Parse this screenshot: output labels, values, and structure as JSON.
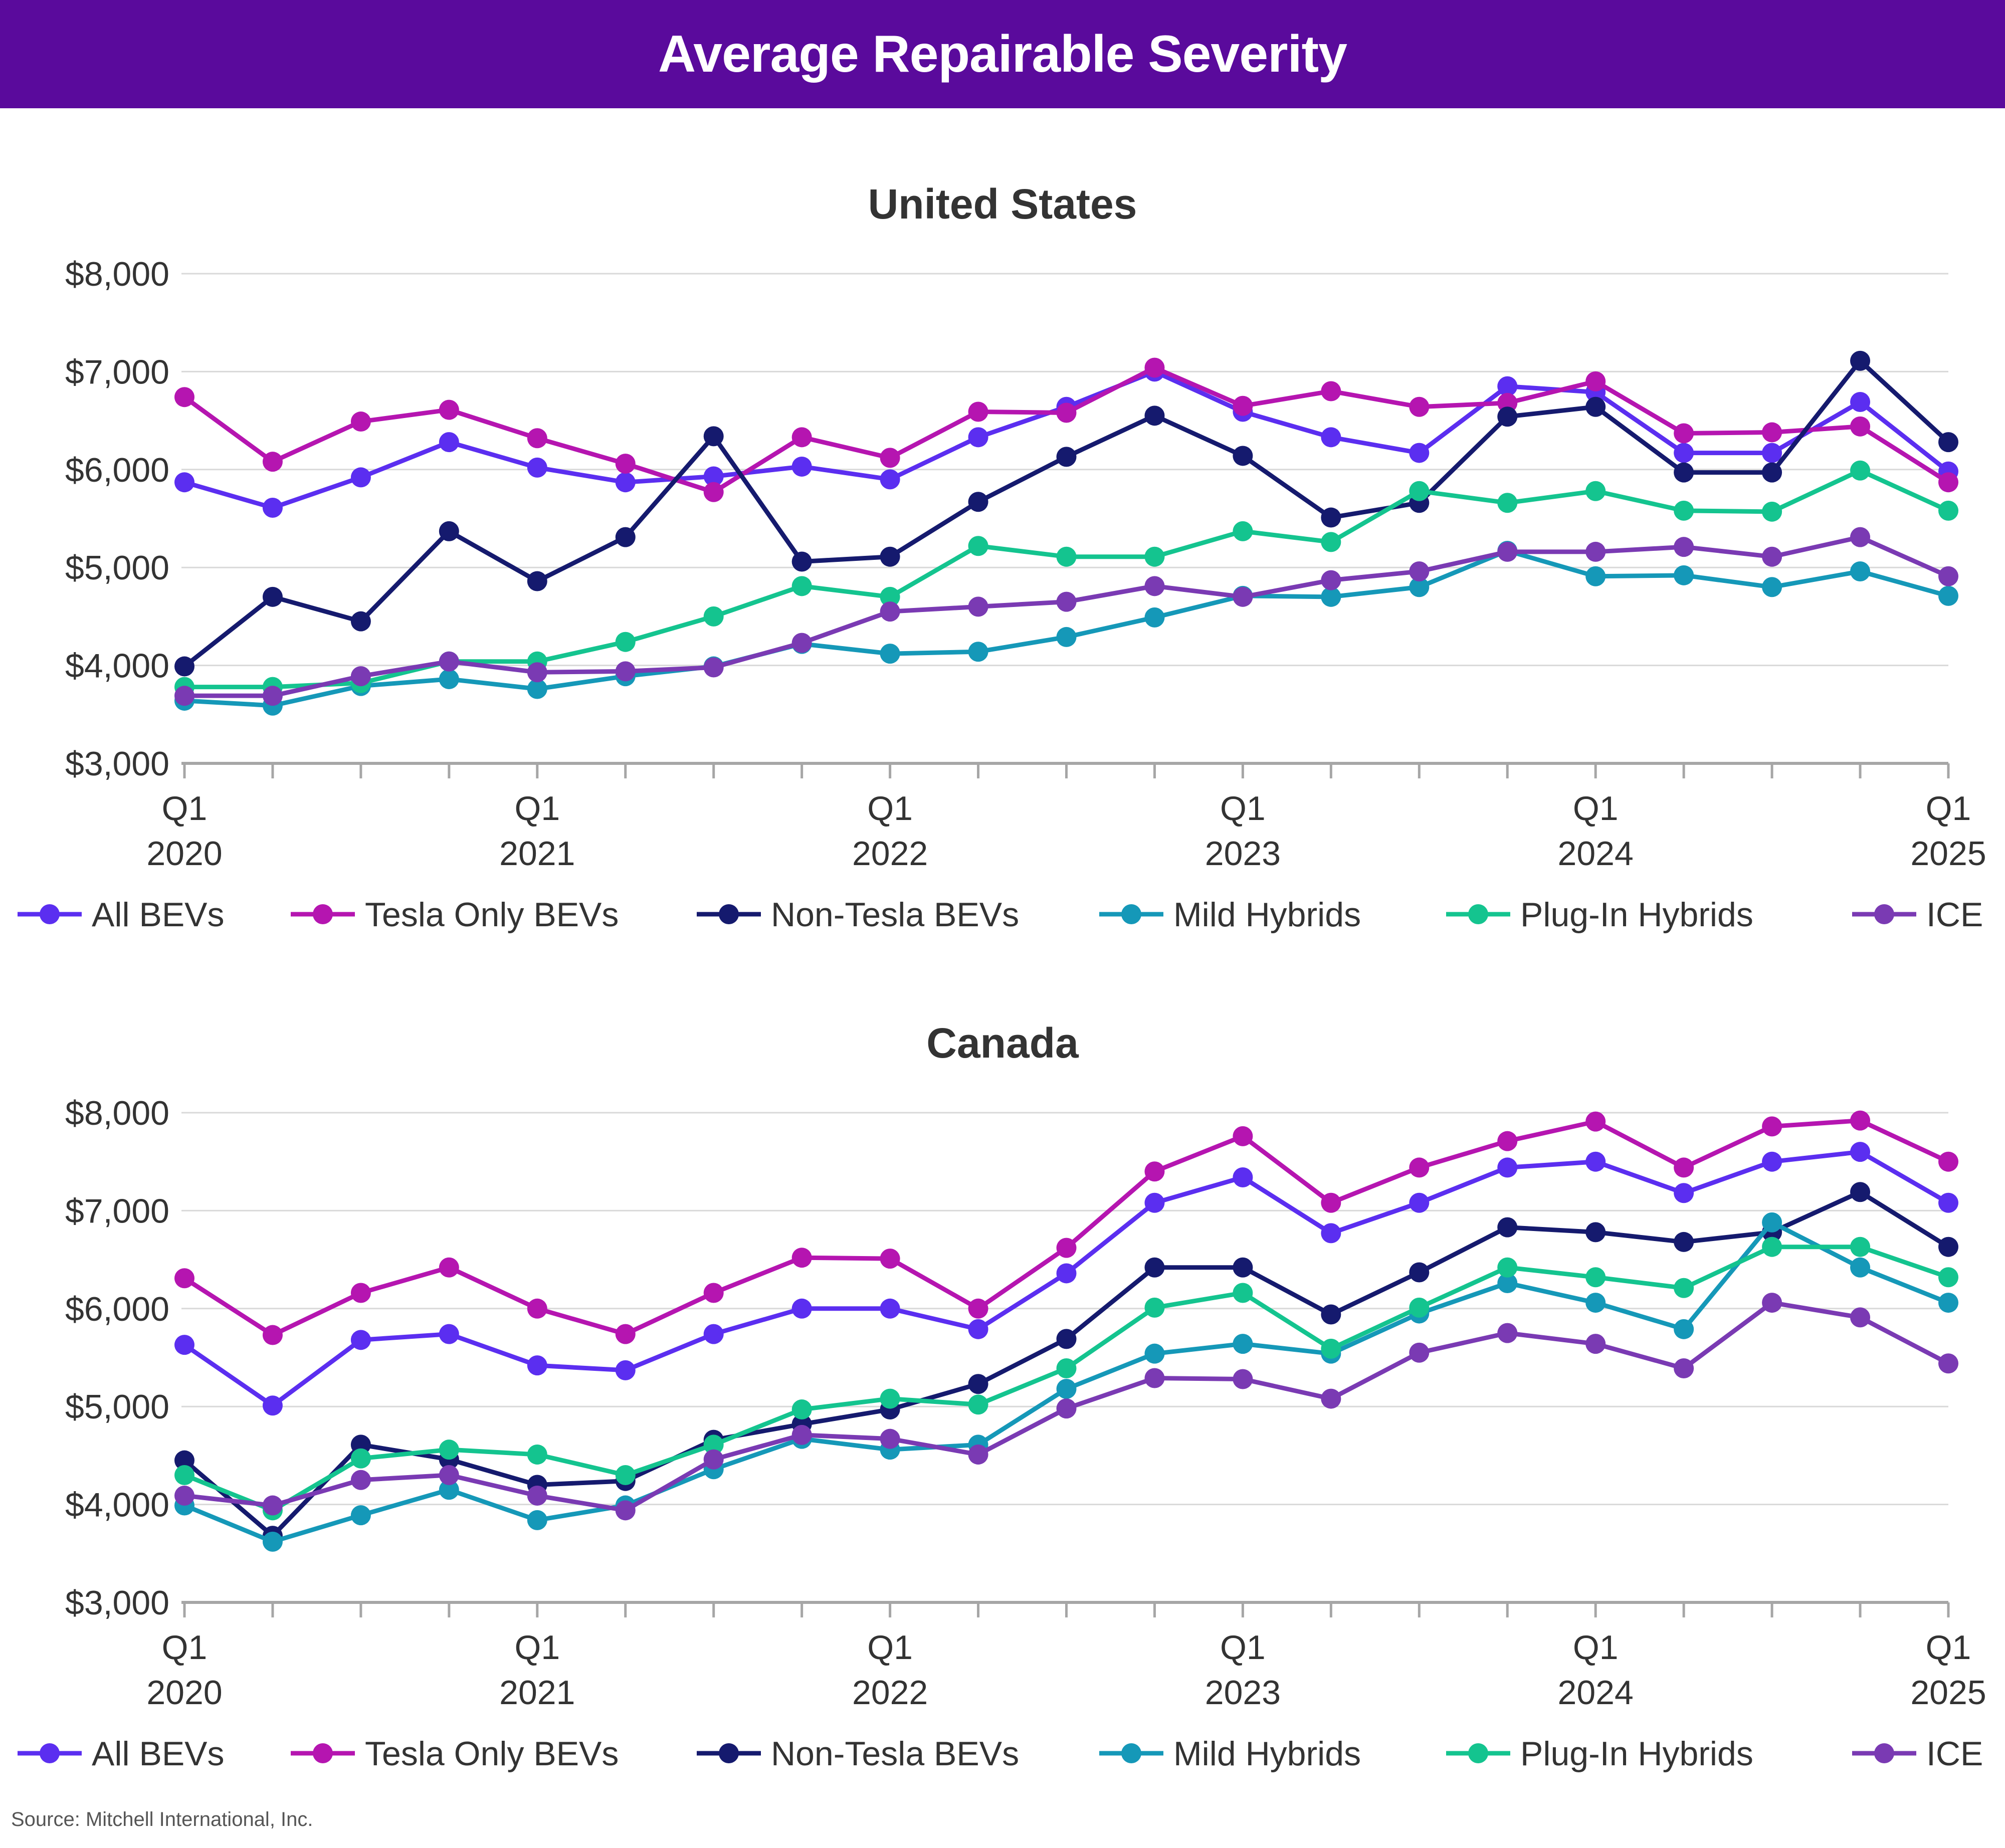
{
  "header": {
    "title": "Average Repairable Severity"
  },
  "source": "Source: Mitchell International, Inc.",
  "series_colors": {
    "All BEVs": "#5b2ef0",
    "Tesla Only BEVs": "#b515b0",
    "Non-Tesla BEVs": "#151a6e",
    "Mild Hybrids": "#1598b8",
    "Plug-In Hybrids": "#14c48f",
    "ICE": "#7a3ab3"
  },
  "chart_data": [
    {
      "type": "line",
      "title": "United States",
      "xlabel": "",
      "ylabel": "",
      "ylim": [
        3000,
        8000
      ],
      "yticks": [
        3000,
        4000,
        5000,
        6000,
        7000,
        8000
      ],
      "ytick_labels": [
        "$3,000",
        "$4,000",
        "$5,000",
        "$6,000",
        "$7,000",
        "$8,000"
      ],
      "x_labels": [
        {
          "index": 0,
          "q": "Q1",
          "year": "2020"
        },
        {
          "index": 4,
          "q": "Q1",
          "year": "2021"
        },
        {
          "index": 8,
          "q": "Q1",
          "year": "2022"
        },
        {
          "index": 12,
          "q": "Q1",
          "year": "2023"
        },
        {
          "index": 16,
          "q": "Q1",
          "year": "2024"
        },
        {
          "index": 20,
          "q": "Q1",
          "year": "2025"
        }
      ],
      "categories": [
        "Q1 2020",
        "Q2 2020",
        "Q3 2020",
        "Q4 2020",
        "Q1 2021",
        "Q2 2021",
        "Q3 2021",
        "Q4 2021",
        "Q1 2022",
        "Q2 2022",
        "Q3 2022",
        "Q4 2022",
        "Q1 2023",
        "Q2 2023",
        "Q3 2023",
        "Q4 2023",
        "Q1 2024",
        "Q2 2024",
        "Q3 2024",
        "Q4 2024",
        "Q1 2025"
      ],
      "legend": "bottom",
      "series": [
        {
          "name": "All BEVs",
          "values": [
            5870,
            5610,
            5920,
            6280,
            6020,
            5870,
            5930,
            6030,
            5900,
            6330,
            6640,
            7000,
            6590,
            6330,
            6170,
            6850,
            6790,
            6170,
            6170,
            6690,
            5980
          ]
        },
        {
          "name": "Tesla Only BEVs",
          "values": [
            6740,
            6080,
            6490,
            6610,
            6320,
            6060,
            5770,
            6330,
            6120,
            6590,
            6580,
            7040,
            6650,
            6800,
            6640,
            6680,
            6900,
            6370,
            6380,
            6440,
            5870
          ]
        },
        {
          "name": "Non-Tesla BEVs",
          "values": [
            3990,
            4700,
            4450,
            5370,
            4860,
            5310,
            6340,
            5060,
            5110,
            5670,
            6130,
            6550,
            6140,
            5510,
            5660,
            6540,
            6640,
            5970,
            5970,
            7110,
            6280
          ]
        },
        {
          "name": "Mild Hybrids",
          "values": [
            3640,
            3590,
            3790,
            3860,
            3760,
            3890,
            3990,
            4220,
            4120,
            4140,
            4290,
            4490,
            4710,
            4700,
            4800,
            5170,
            4910,
            4920,
            4800,
            4960,
            4710
          ]
        },
        {
          "name": "Plug-In Hybrids",
          "values": [
            3780,
            3780,
            3820,
            4040,
            4040,
            4240,
            4500,
            4810,
            4700,
            5220,
            5110,
            5110,
            5370,
            5260,
            5780,
            5660,
            5780,
            5580,
            5570,
            5990,
            5580
          ]
        },
        {
          "name": "ICE",
          "values": [
            3690,
            3690,
            3890,
            4040,
            3930,
            3940,
            3980,
            4230,
            4550,
            4600,
            4650,
            4810,
            4700,
            4870,
            4960,
            5160,
            5160,
            5210,
            5110,
            5310,
            4910
          ]
        }
      ]
    },
    {
      "type": "line",
      "title": "Canada",
      "xlabel": "",
      "ylabel": "",
      "ylim": [
        3000,
        8000
      ],
      "yticks": [
        3000,
        4000,
        5000,
        6000,
        7000,
        8000
      ],
      "ytick_labels": [
        "$3,000",
        "$4,000",
        "$5,000",
        "$6,000",
        "$7,000",
        "$8,000"
      ],
      "x_labels": [
        {
          "index": 0,
          "q": "Q1",
          "year": "2020"
        },
        {
          "index": 4,
          "q": "Q1",
          "year": "2021"
        },
        {
          "index": 8,
          "q": "Q1",
          "year": "2022"
        },
        {
          "index": 12,
          "q": "Q1",
          "year": "2023"
        },
        {
          "index": 16,
          "q": "Q1",
          "year": "2024"
        },
        {
          "index": 20,
          "q": "Q1",
          "year": "2025"
        }
      ],
      "categories": [
        "Q1 2020",
        "Q2 2020",
        "Q3 2020",
        "Q4 2020",
        "Q1 2021",
        "Q2 2021",
        "Q3 2021",
        "Q4 2021",
        "Q1 2022",
        "Q2 2022",
        "Q3 2022",
        "Q4 2022",
        "Q1 2023",
        "Q2 2023",
        "Q3 2023",
        "Q4 2023",
        "Q1 2024",
        "Q2 2024",
        "Q3 2024",
        "Q4 2024",
        "Q1 2025"
      ],
      "legend": "bottom",
      "series": [
        {
          "name": "All BEVs",
          "values": [
            5630,
            5010,
            5680,
            5740,
            5420,
            5370,
            5740,
            6000,
            6000,
            5790,
            6360,
            7080,
            7340,
            6770,
            7080,
            7440,
            7500,
            7180,
            7500,
            7600,
            7080
          ]
        },
        {
          "name": "Tesla Only BEVs",
          "values": [
            6310,
            5730,
            6160,
            6420,
            6000,
            5740,
            6160,
            6520,
            6510,
            6000,
            6620,
            7400,
            7760,
            7080,
            7440,
            7710,
            7910,
            7440,
            7860,
            7920,
            7500
          ]
        },
        {
          "name": "Non-Tesla BEVs",
          "values": [
            4450,
            3680,
            4610,
            4460,
            4200,
            4240,
            4660,
            4820,
            4970,
            5230,
            5690,
            6420,
            6420,
            5940,
            6370,
            6830,
            6780,
            6680,
            6780,
            7190,
            6630
          ]
        },
        {
          "name": "Mild Hybrids",
          "values": [
            3990,
            3620,
            3890,
            4150,
            3840,
            3990,
            4360,
            4670,
            4560,
            4610,
            5180,
            5540,
            5640,
            5540,
            5950,
            6260,
            6060,
            5790,
            6880,
            6420,
            6060
          ]
        },
        {
          "name": "Plug-In Hybrids",
          "values": [
            4300,
            3940,
            4470,
            4560,
            4510,
            4300,
            4610,
            4970,
            5080,
            5020,
            5390,
            6010,
            6160,
            5590,
            6010,
            6420,
            6320,
            6210,
            6630,
            6630,
            6320
          ]
        },
        {
          "name": "ICE",
          "values": [
            4090,
            3990,
            4250,
            4300,
            4090,
            3940,
            4460,
            4710,
            4670,
            4510,
            4980,
            5290,
            5280,
            5080,
            5550,
            5750,
            5640,
            5390,
            6060,
            5910,
            5440
          ]
        }
      ]
    }
  ]
}
